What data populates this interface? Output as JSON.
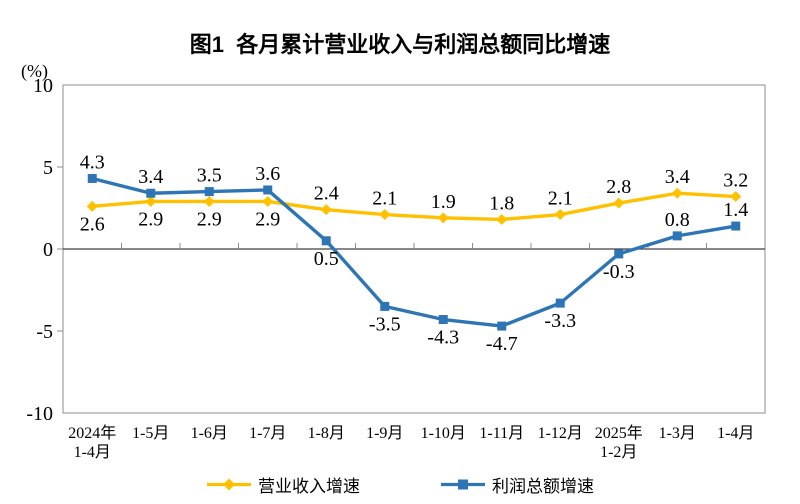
{
  "chart_data": {
    "type": "line",
    "title": "图1  各月累计营业收入与利润总额同比增速",
    "unit_label": "(%)",
    "grid": false,
    "legend_position": "bottom",
    "y_axis": {
      "min": -10,
      "max": 10,
      "ticks": [
        10,
        5,
        0,
        -5,
        -10
      ],
      "outward_tick_values": [
        5,
        0,
        -5
      ]
    },
    "categories": [
      [
        "2024年",
        "1-4月"
      ],
      [
        "1-5月"
      ],
      [
        "1-6月"
      ],
      [
        "1-7月"
      ],
      [
        "1-8月"
      ],
      [
        "1-9月"
      ],
      [
        "1-10月"
      ],
      [
        "1-11月"
      ],
      [
        "1-12月"
      ],
      [
        "2025年",
        "1-2月"
      ],
      [
        "1-3月"
      ],
      [
        "1-4月"
      ]
    ],
    "series": [
      {
        "name": "营业收入增速",
        "color": "#FFC000",
        "marker": "diamond",
        "values": [
          2.6,
          2.9,
          2.9,
          2.9,
          2.4,
          2.1,
          1.9,
          1.8,
          2.1,
          2.8,
          3.4,
          3.2
        ],
        "label_positions": [
          "below",
          "below",
          "below",
          "below",
          "above",
          "above",
          "above",
          "above",
          "above",
          "above",
          "above",
          "above"
        ]
      },
      {
        "name": "利润总额增速",
        "color": "#2E75B6",
        "marker": "square",
        "values": [
          4.3,
          3.4,
          3.5,
          3.6,
          0.5,
          -3.5,
          -4.3,
          -4.7,
          -3.3,
          -0.3,
          0.8,
          1.4
        ],
        "label_positions": [
          "above",
          "above",
          "above",
          "above",
          "below",
          "below",
          "below",
          "below",
          "below",
          "below",
          "above",
          "above"
        ]
      }
    ],
    "colors": {
      "axis_frame": "#8C8C8C",
      "zero_line": "#404040",
      "text": "#000000",
      "background": "#FFFFFF"
    }
  }
}
